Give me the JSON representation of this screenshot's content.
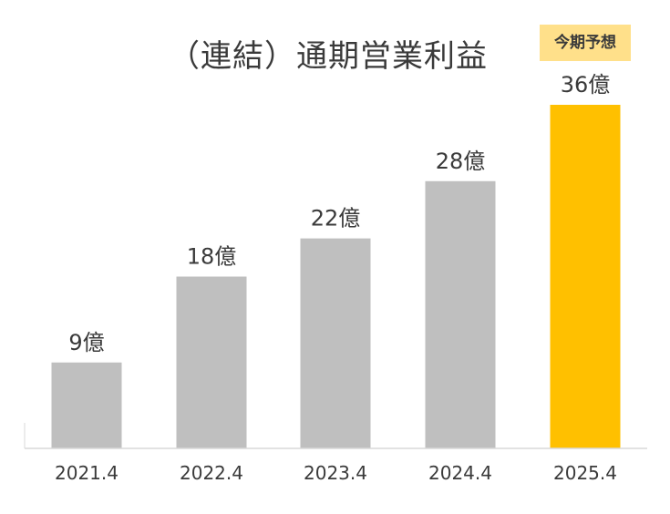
{
  "chart_data": {
    "type": "bar",
    "title": "（連結）通期営業利益",
    "categories": [
      "2021.4",
      "2022.4",
      "2023.4",
      "2024.4",
      "2025.4"
    ],
    "values": [
      9,
      18,
      22,
      28,
      36
    ],
    "value_labels": [
      "9億",
      "18億",
      "22億",
      "28億",
      "36億"
    ],
    "ylim": [
      0,
      36
    ],
    "grid": false,
    "highlight_index": 4,
    "highlight_label": "今期予想",
    "colors": {
      "bar": "#bfbfbf",
      "highlight": "#ffc000",
      "badge": "#ffe08a",
      "text": "#3a3a3a",
      "axis": "#d9d9d9"
    }
  }
}
